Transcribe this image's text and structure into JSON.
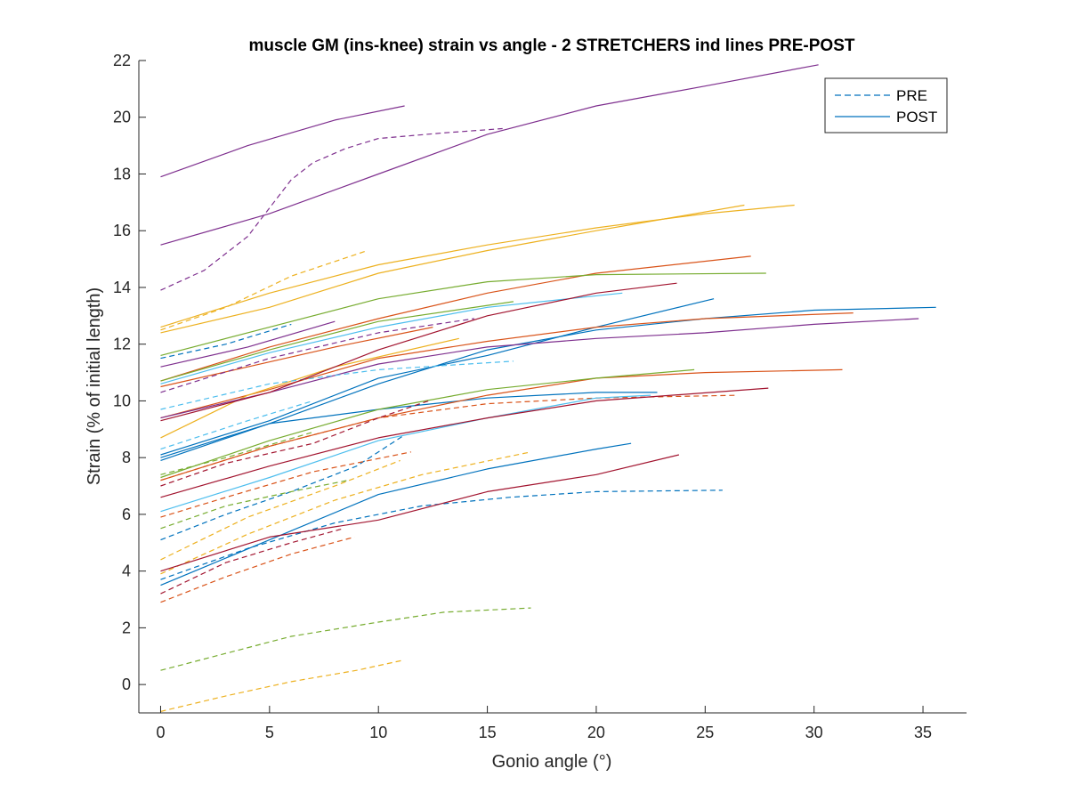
{
  "chart_data": {
    "type": "line",
    "title": "muscle GM (ins-knee) strain vs angle - 2 STRETCHERS ind lines PRE-POST",
    "xlabel": "Gonio angle (°)",
    "ylabel": "Strain (% of initial length)",
    "xlim": [
      -1,
      37
    ],
    "ylim": [
      -1,
      22
    ],
    "xticks": [
      0,
      5,
      10,
      15,
      20,
      25,
      30,
      35
    ],
    "yticks": [
      0,
      2,
      4,
      6,
      8,
      10,
      12,
      14,
      16,
      18,
      20,
      22
    ],
    "grid": false,
    "legend": {
      "position": "top-right",
      "entries": [
        {
          "label": "PRE",
          "style": "dashed",
          "color": "#0072BD"
        },
        {
          "label": "POST",
          "style": "solid",
          "color": "#0072BD"
        }
      ]
    },
    "series": [
      {
        "color": "#0072BD",
        "style": "solid",
        "points": [
          [
            0,
            8.0
          ],
          [
            5,
            9.2
          ],
          [
            10,
            9.7
          ],
          [
            15,
            10.1
          ],
          [
            20,
            10.3
          ],
          [
            22.8,
            10.3
          ]
        ]
      },
      {
        "color": "#0072BD",
        "style": "solid",
        "points": [
          [
            0,
            8.1
          ],
          [
            5,
            9.3
          ],
          [
            10,
            10.8
          ],
          [
            15,
            11.6
          ],
          [
            20,
            12.6
          ],
          [
            25.4,
            13.6
          ]
        ]
      },
      {
        "color": "#0072BD",
        "style": "solid",
        "points": [
          [
            0,
            3.5
          ],
          [
            5,
            5.1
          ],
          [
            10,
            6.7
          ],
          [
            15,
            7.6
          ],
          [
            20,
            8.3
          ],
          [
            21.6,
            8.5
          ]
        ]
      },
      {
        "color": "#0072BD",
        "style": "solid",
        "points": [
          [
            0,
            7.9
          ],
          [
            5,
            9.2
          ],
          [
            10,
            10.6
          ],
          [
            15,
            11.8
          ],
          [
            20,
            12.5
          ],
          [
            25,
            12.9
          ],
          [
            30,
            13.2
          ],
          [
            35.6,
            13.3
          ]
        ]
      },
      {
        "color": "#0072BD",
        "style": "dashed",
        "points": [
          [
            0,
            3.7
          ],
          [
            4,
            4.8
          ],
          [
            8,
            5.7
          ],
          [
            12,
            6.3
          ],
          [
            16,
            6.6
          ],
          [
            20,
            6.8
          ],
          [
            25.8,
            6.85
          ]
        ]
      },
      {
        "color": "#0072BD",
        "style": "dashed",
        "points": [
          [
            0,
            5.1
          ],
          [
            3,
            6.0
          ],
          [
            6,
            6.8
          ],
          [
            9,
            7.7
          ],
          [
            11.2,
            8.8
          ]
        ]
      },
      {
        "color": "#0072BD",
        "style": "dashed",
        "points": [
          [
            0,
            11.5
          ],
          [
            3,
            12.0
          ],
          [
            6,
            12.7
          ]
        ]
      },
      {
        "color": "#D95319",
        "style": "solid",
        "points": [
          [
            0,
            10.7
          ],
          [
            5,
            11.9
          ],
          [
            10,
            12.9
          ],
          [
            15,
            13.8
          ],
          [
            20,
            14.5
          ],
          [
            27.1,
            15.1
          ]
        ]
      },
      {
        "color": "#D95319",
        "style": "solid",
        "points": [
          [
            0,
            7.2
          ],
          [
            5,
            8.4
          ],
          [
            10,
            9.4
          ],
          [
            15,
            10.2
          ],
          [
            20,
            10.8
          ],
          [
            25,
            11.0
          ],
          [
            31.3,
            11.1
          ]
        ]
      },
      {
        "color": "#D95319",
        "style": "solid",
        "points": [
          [
            0,
            9.4
          ],
          [
            5,
            10.4
          ],
          [
            10,
            11.5
          ],
          [
            15,
            12.1
          ],
          [
            20,
            12.6
          ],
          [
            25,
            12.9
          ],
          [
            31.8,
            13.1
          ]
        ]
      },
      {
        "color": "#D95319",
        "style": "solid",
        "points": [
          [
            0,
            10.5
          ],
          [
            4,
            11.2
          ],
          [
            8,
            11.9
          ],
          [
            12.5,
            12.6
          ]
        ]
      },
      {
        "color": "#D95319",
        "style": "dashed",
        "points": [
          [
            0,
            2.9
          ],
          [
            3,
            3.8
          ],
          [
            6,
            4.6
          ],
          [
            8.9,
            5.2
          ]
        ]
      },
      {
        "color": "#D95319",
        "style": "dashed",
        "points": [
          [
            0,
            5.9
          ],
          [
            3,
            6.6
          ],
          [
            7,
            7.5
          ],
          [
            11.5,
            8.2
          ]
        ]
      },
      {
        "color": "#D95319",
        "style": "dashed",
        "points": [
          [
            0,
            7.2
          ],
          [
            5,
            8.4
          ],
          [
            10,
            9.4
          ],
          [
            15,
            9.9
          ],
          [
            20,
            10.1
          ],
          [
            26.5,
            10.2
          ]
        ]
      },
      {
        "color": "#EDB120",
        "style": "solid",
        "points": [
          [
            0,
            12.6
          ],
          [
            5,
            13.8
          ],
          [
            10,
            14.8
          ],
          [
            15,
            15.5
          ],
          [
            20,
            16.1
          ],
          [
            25,
            16.6
          ],
          [
            29.1,
            16.9
          ]
        ]
      },
      {
        "color": "#EDB120",
        "style": "solid",
        "points": [
          [
            0,
            12.4
          ],
          [
            5,
            13.3
          ],
          [
            10,
            14.5
          ],
          [
            15,
            15.3
          ],
          [
            20,
            16.0
          ],
          [
            26.8,
            16.9
          ]
        ]
      },
      {
        "color": "#EDB120",
        "style": "solid",
        "points": [
          [
            0,
            8.7
          ],
          [
            4,
            10.2
          ],
          [
            8,
            11.2
          ],
          [
            13.7,
            12.2
          ]
        ]
      },
      {
        "color": "#EDB120",
        "style": "dashed",
        "points": [
          [
            0,
            12.5
          ],
          [
            3,
            13.3
          ],
          [
            6,
            14.4
          ],
          [
            9.5,
            15.3
          ]
        ]
      },
      {
        "color": "#EDB120",
        "style": "dashed",
        "points": [
          [
            0,
            -0.95
          ],
          [
            3,
            -0.4
          ],
          [
            6,
            0.1
          ],
          [
            9,
            0.5
          ],
          [
            11.1,
            0.85
          ]
        ]
      },
      {
        "color": "#EDB120",
        "style": "dashed",
        "points": [
          [
            0,
            3.9
          ],
          [
            4,
            5.3
          ],
          [
            8,
            6.5
          ],
          [
            12,
            7.4
          ],
          [
            17,
            8.2
          ]
        ]
      },
      {
        "color": "#EDB120",
        "style": "dashed",
        "points": [
          [
            0,
            4.4
          ],
          [
            4,
            5.9
          ],
          [
            8,
            7.0
          ],
          [
            11,
            7.9
          ]
        ]
      },
      {
        "color": "#7E2F8E",
        "style": "solid",
        "points": [
          [
            0,
            17.9
          ],
          [
            4,
            19.0
          ],
          [
            8,
            19.9
          ],
          [
            11.2,
            20.4
          ]
        ]
      },
      {
        "color": "#7E2F8E",
        "style": "solid",
        "points": [
          [
            0,
            15.5
          ],
          [
            5,
            16.6
          ],
          [
            10,
            18.0
          ],
          [
            15,
            19.4
          ],
          [
            20,
            20.4
          ],
          [
            25,
            21.1
          ],
          [
            30.2,
            21.85
          ]
        ]
      },
      {
        "color": "#7E2F8E",
        "style": "solid",
        "points": [
          [
            0,
            11.2
          ],
          [
            4,
            11.9
          ],
          [
            8,
            12.8
          ]
        ]
      },
      {
        "color": "#7E2F8E",
        "style": "solid",
        "points": [
          [
            0,
            9.4
          ],
          [
            5,
            10.3
          ],
          [
            10,
            11.3
          ],
          [
            15,
            11.9
          ],
          [
            20,
            12.2
          ],
          [
            25,
            12.4
          ],
          [
            30,
            12.7
          ],
          [
            34.8,
            12.9
          ]
        ]
      },
      {
        "color": "#7E2F8E",
        "style": "dashed",
        "points": [
          [
            0,
            13.9
          ],
          [
            2,
            14.6
          ],
          [
            4,
            15.8
          ],
          [
            5,
            16.8
          ],
          [
            6,
            17.8
          ],
          [
            7,
            18.4
          ],
          [
            8.5,
            18.9
          ],
          [
            10,
            19.25
          ],
          [
            13,
            19.45
          ],
          [
            15.7,
            19.6
          ]
        ]
      },
      {
        "color": "#7E2F8E",
        "style": "dashed",
        "points": [
          [
            0,
            10.3
          ],
          [
            5,
            11.5
          ],
          [
            10,
            12.4
          ],
          [
            14.4,
            12.9
          ]
        ]
      },
      {
        "color": "#77AC30",
        "style": "solid",
        "points": [
          [
            0,
            11.6
          ],
          [
            5,
            12.6
          ],
          [
            10,
            13.6
          ],
          [
            15,
            14.2
          ],
          [
            20,
            14.45
          ],
          [
            27.8,
            14.5
          ]
        ]
      },
      {
        "color": "#77AC30",
        "style": "solid",
        "points": [
          [
            0,
            10.7
          ],
          [
            5,
            11.8
          ],
          [
            10,
            12.8
          ],
          [
            16.2,
            13.5
          ]
        ]
      },
      {
        "color": "#77AC30",
        "style": "solid",
        "points": [
          [
            0,
            7.3
          ],
          [
            5,
            8.6
          ],
          [
            10,
            9.7
          ],
          [
            15,
            10.4
          ],
          [
            20,
            10.8
          ],
          [
            24.5,
            11.1
          ]
        ]
      },
      {
        "color": "#77AC30",
        "style": "dashed",
        "points": [
          [
            0,
            0.5
          ],
          [
            3,
            1.1
          ],
          [
            6,
            1.7
          ],
          [
            10,
            2.2
          ],
          [
            13,
            2.55
          ],
          [
            17,
            2.7
          ]
        ]
      },
      {
        "color": "#77AC30",
        "style": "dashed",
        "points": [
          [
            0,
            5.5
          ],
          [
            3,
            6.3
          ],
          [
            6,
            6.8
          ],
          [
            8.6,
            7.2
          ]
        ]
      },
      {
        "color": "#77AC30",
        "style": "dashed",
        "points": [
          [
            0,
            7.4
          ],
          [
            3,
            8.0
          ],
          [
            7,
            8.9
          ]
        ]
      },
      {
        "color": "#4DBEEE",
        "style": "solid",
        "points": [
          [
            0,
            10.6
          ],
          [
            5,
            11.7
          ],
          [
            10,
            12.6
          ],
          [
            15,
            13.3
          ],
          [
            21.2,
            13.8
          ]
        ]
      },
      {
        "color": "#4DBEEE",
        "style": "solid",
        "points": [
          [
            0,
            6.1
          ],
          [
            5,
            7.3
          ],
          [
            10,
            8.6
          ],
          [
            15,
            9.4
          ],
          [
            20,
            10.1
          ],
          [
            22.5,
            10.2
          ]
        ]
      },
      {
        "color": "#4DBEEE",
        "style": "dashed",
        "points": [
          [
            0,
            9.7
          ],
          [
            5,
            10.6
          ],
          [
            10,
            11.1
          ],
          [
            16.2,
            11.4
          ]
        ]
      },
      {
        "color": "#4DBEEE",
        "style": "dashed",
        "points": [
          [
            0,
            8.3
          ],
          [
            4,
            9.3
          ],
          [
            7,
            10.0
          ]
        ]
      },
      {
        "color": "#A2142F",
        "style": "solid",
        "points": [
          [
            0,
            6.6
          ],
          [
            5,
            7.7
          ],
          [
            10,
            8.7
          ],
          [
            15,
            9.4
          ],
          [
            20,
            10.0
          ],
          [
            27.9,
            10.45
          ]
        ]
      },
      {
        "color": "#A2142F",
        "style": "solid",
        "points": [
          [
            0,
            4.0
          ],
          [
            5,
            5.2
          ],
          [
            10,
            5.8
          ],
          [
            15,
            6.8
          ],
          [
            20,
            7.4
          ],
          [
            23.8,
            8.1
          ]
        ]
      },
      {
        "color": "#A2142F",
        "style": "solid",
        "points": [
          [
            0,
            9.3
          ],
          [
            5,
            10.3
          ],
          [
            10,
            11.8
          ],
          [
            15,
            13.0
          ],
          [
            20,
            13.8
          ],
          [
            23.7,
            14.15
          ]
        ]
      },
      {
        "color": "#A2142F",
        "style": "dashed",
        "points": [
          [
            0,
            3.2
          ],
          [
            3,
            4.3
          ],
          [
            6,
            5.0
          ],
          [
            8.4,
            5.5
          ]
        ]
      },
      {
        "color": "#A2142F",
        "style": "dashed",
        "points": [
          [
            0,
            7.0
          ],
          [
            3,
            7.8
          ],
          [
            7,
            8.5
          ],
          [
            10,
            9.4
          ],
          [
            12.3,
            10.0
          ]
        ]
      }
    ]
  }
}
